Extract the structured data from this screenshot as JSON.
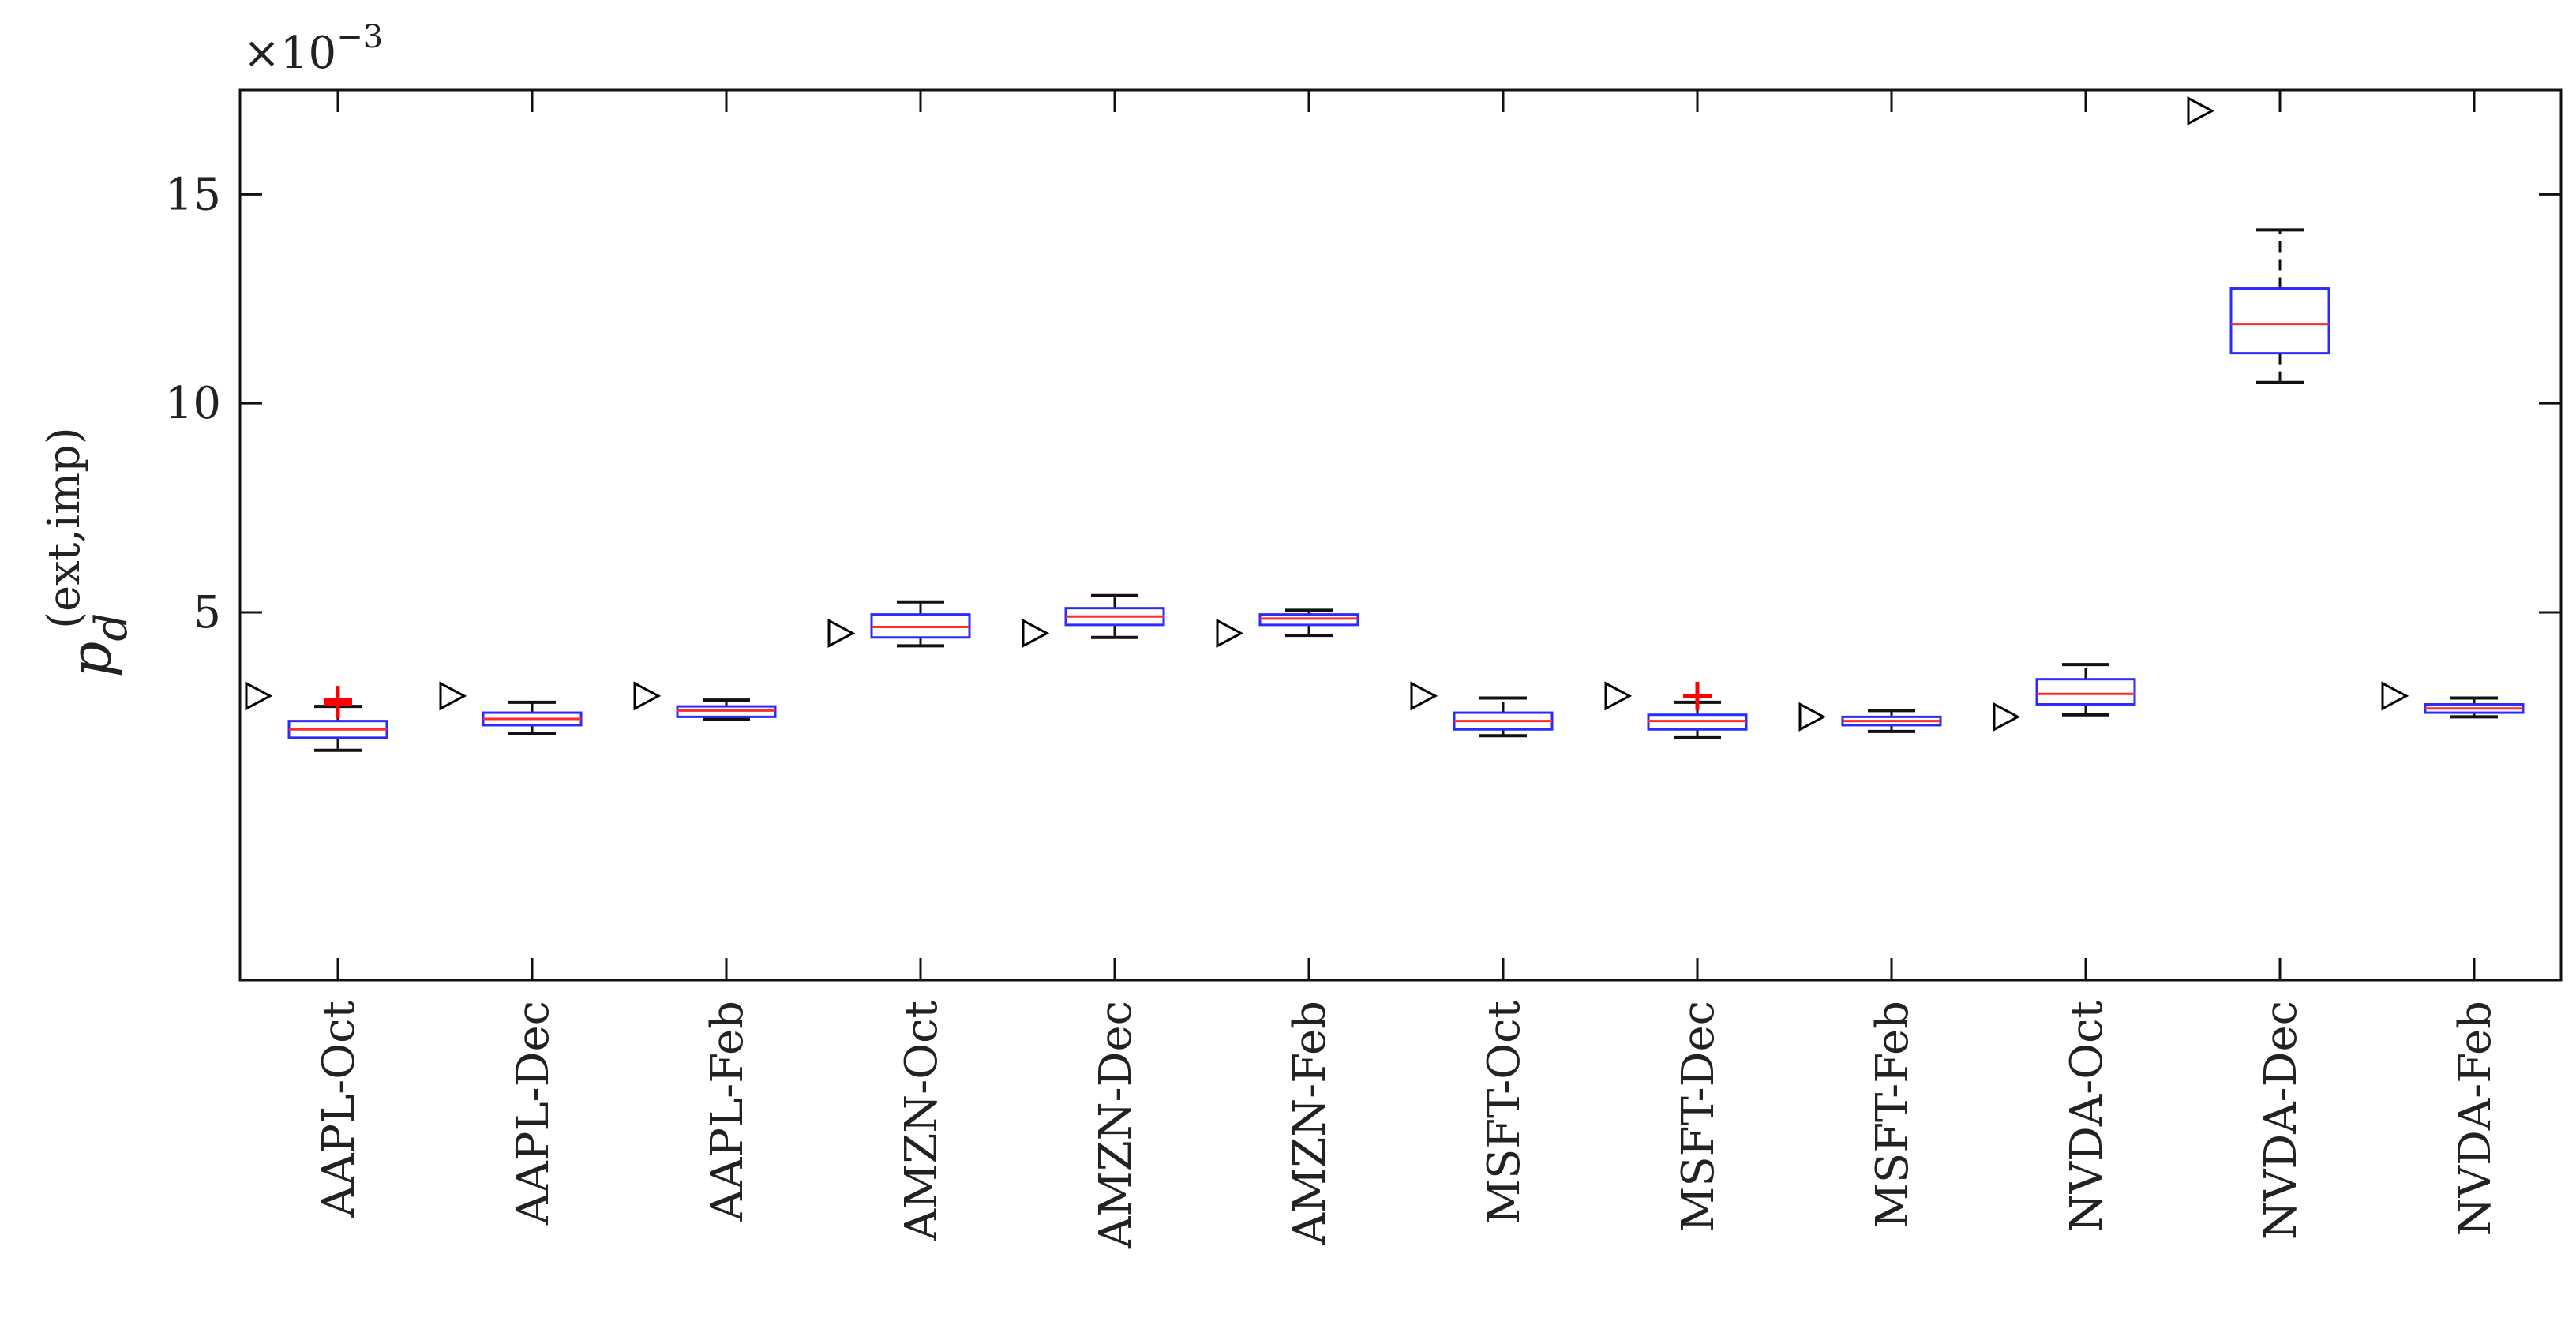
{
  "chart_data": {
    "type": "box",
    "title": "",
    "xlabel": "",
    "ylabel": {
      "base": "p",
      "subscript": "d",
      "superscript": "(ext,imp)"
    },
    "y_multiplier": {
      "base": "×10",
      "exponent": "−3"
    },
    "ylim": [
      -3.8,
      17.5
    ],
    "yticks": [
      5,
      10,
      15
    ],
    "ytick_labels": [
      "5",
      "10",
      "15"
    ],
    "grid": false,
    "categories": [
      "AAPL-Oct",
      "AAPL-Dec",
      "AAPL-Feb",
      "AMZN-Oct",
      "AMZN-Dec",
      "AMZN-Feb",
      "MSFT-Oct",
      "MSFT-Dec",
      "MSFT-Feb",
      "NVDA-Oct",
      "NVDA-Dec",
      "NVDA-Feb"
    ],
    "boxes": [
      {
        "whisker_low": 1.7,
        "q1": 2.0,
        "median": 2.2,
        "q3": 2.4,
        "whisker_high": 2.75,
        "outliers": [
          2.8,
          2.85,
          2.9
        ]
      },
      {
        "whisker_low": 2.1,
        "q1": 2.3,
        "median": 2.45,
        "q3": 2.6,
        "whisker_high": 2.85,
        "outliers": []
      },
      {
        "whisker_low": 2.45,
        "q1": 2.5,
        "median": 2.65,
        "q3": 2.75,
        "whisker_high": 2.9,
        "outliers": []
      },
      {
        "whisker_low": 4.2,
        "q1": 4.4,
        "median": 4.65,
        "q3": 4.95,
        "whisker_high": 5.25,
        "outliers": []
      },
      {
        "whisker_low": 4.4,
        "q1": 4.7,
        "median": 4.9,
        "q3": 5.1,
        "whisker_high": 5.4,
        "outliers": []
      },
      {
        "whisker_low": 4.45,
        "q1": 4.7,
        "median": 4.85,
        "q3": 4.95,
        "whisker_high": 5.05,
        "outliers": []
      },
      {
        "whisker_low": 2.05,
        "q1": 2.2,
        "median": 2.4,
        "q3": 2.6,
        "whisker_high": 2.95,
        "outliers": []
      },
      {
        "whisker_low": 2.0,
        "q1": 2.2,
        "median": 2.4,
        "q3": 2.55,
        "whisker_high": 2.85,
        "outliers": [
          3.0
        ]
      },
      {
        "whisker_low": 2.15,
        "q1": 2.3,
        "median": 2.4,
        "q3": 2.5,
        "whisker_high": 2.65,
        "outliers": []
      },
      {
        "whisker_low": 2.55,
        "q1": 2.8,
        "median": 3.05,
        "q3": 3.4,
        "whisker_high": 3.75,
        "outliers": []
      },
      {
        "whisker_low": 10.5,
        "q1": 11.2,
        "median": 11.9,
        "q3": 12.75,
        "whisker_high": 14.15,
        "outliers": []
      },
      {
        "whisker_low": 2.5,
        "q1": 2.6,
        "median": 2.7,
        "q3": 2.8,
        "whisker_high": 2.95,
        "outliers": []
      }
    ],
    "reference_markers": [
      3.0,
      3.0,
      3.0,
      4.5,
      4.5,
      4.5,
      3.0,
      3.0,
      2.5,
      2.5,
      17.0,
      3.0
    ],
    "colors": {
      "box": "#2b2bff",
      "median": "#ff2a2a",
      "whisker": "#111111",
      "outlier": "#ff0000",
      "marker": "#000000",
      "axes": "#111111"
    }
  }
}
